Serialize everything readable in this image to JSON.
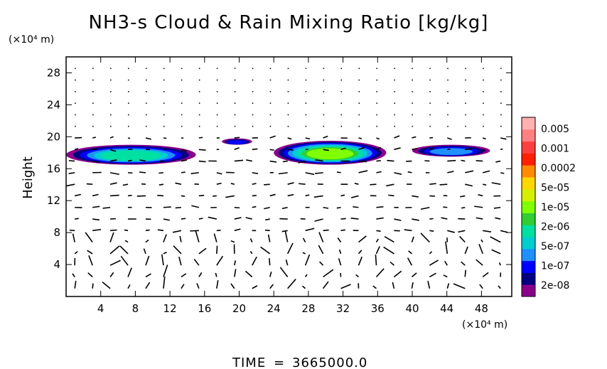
{
  "chart_data": {
    "type": "heatmap",
    "title": "NH3-s Cloud & Rain Mixing Ratio [kg/kg]",
    "ylabel": "Height",
    "y_unit": "(×10⁴ m)",
    "x_unit": "(×10⁴ m)",
    "xlim": [
      0,
      51.5
    ],
    "ylim": [
      0,
      30
    ],
    "x_ticks": [
      4,
      8,
      12,
      16,
      20,
      24,
      28,
      32,
      36,
      40,
      44,
      48
    ],
    "y_ticks": [
      4,
      8,
      12,
      16,
      20,
      24,
      28
    ],
    "colorbar": {
      "labels": [
        "0.005",
        "0.001",
        "0.0002",
        "5e-05",
        "1e-05",
        "2e-06",
        "5e-07",
        "1e-07",
        "2e-08"
      ],
      "colors": [
        "#8b008b",
        "#000080",
        "#0000ff",
        "#1e90ff",
        "#00ced1",
        "#00e0a0",
        "#32cd32",
        "#7fff00",
        "#d4f000",
        "#ffd700",
        "#ff8c00",
        "#ff2000",
        "#ff4040",
        "#ff8080",
        "#ffb0b0"
      ]
    },
    "cloud_regions": [
      {
        "x": [
          0,
          15
        ],
        "y": [
          16.5,
          19
        ],
        "peak": "2e-06"
      },
      {
        "x": [
          18,
          21.5
        ],
        "y": [
          19,
          19.8
        ],
        "peak": "1e-07"
      },
      {
        "x": [
          24,
          37
        ],
        "y": [
          16.5,
          19.5
        ],
        "peak": "1e-05"
      },
      {
        "x": [
          40,
          49
        ],
        "y": [
          17.5,
          19
        ],
        "peak": "5e-07"
      }
    ],
    "wind_vectors": "shown"
  },
  "footer": {
    "time_label": "TIME",
    "time_value": "3665000.0"
  },
  "colors": {
    "axis": "#000000",
    "vectors": "#000000",
    "background": "#ffffff"
  }
}
